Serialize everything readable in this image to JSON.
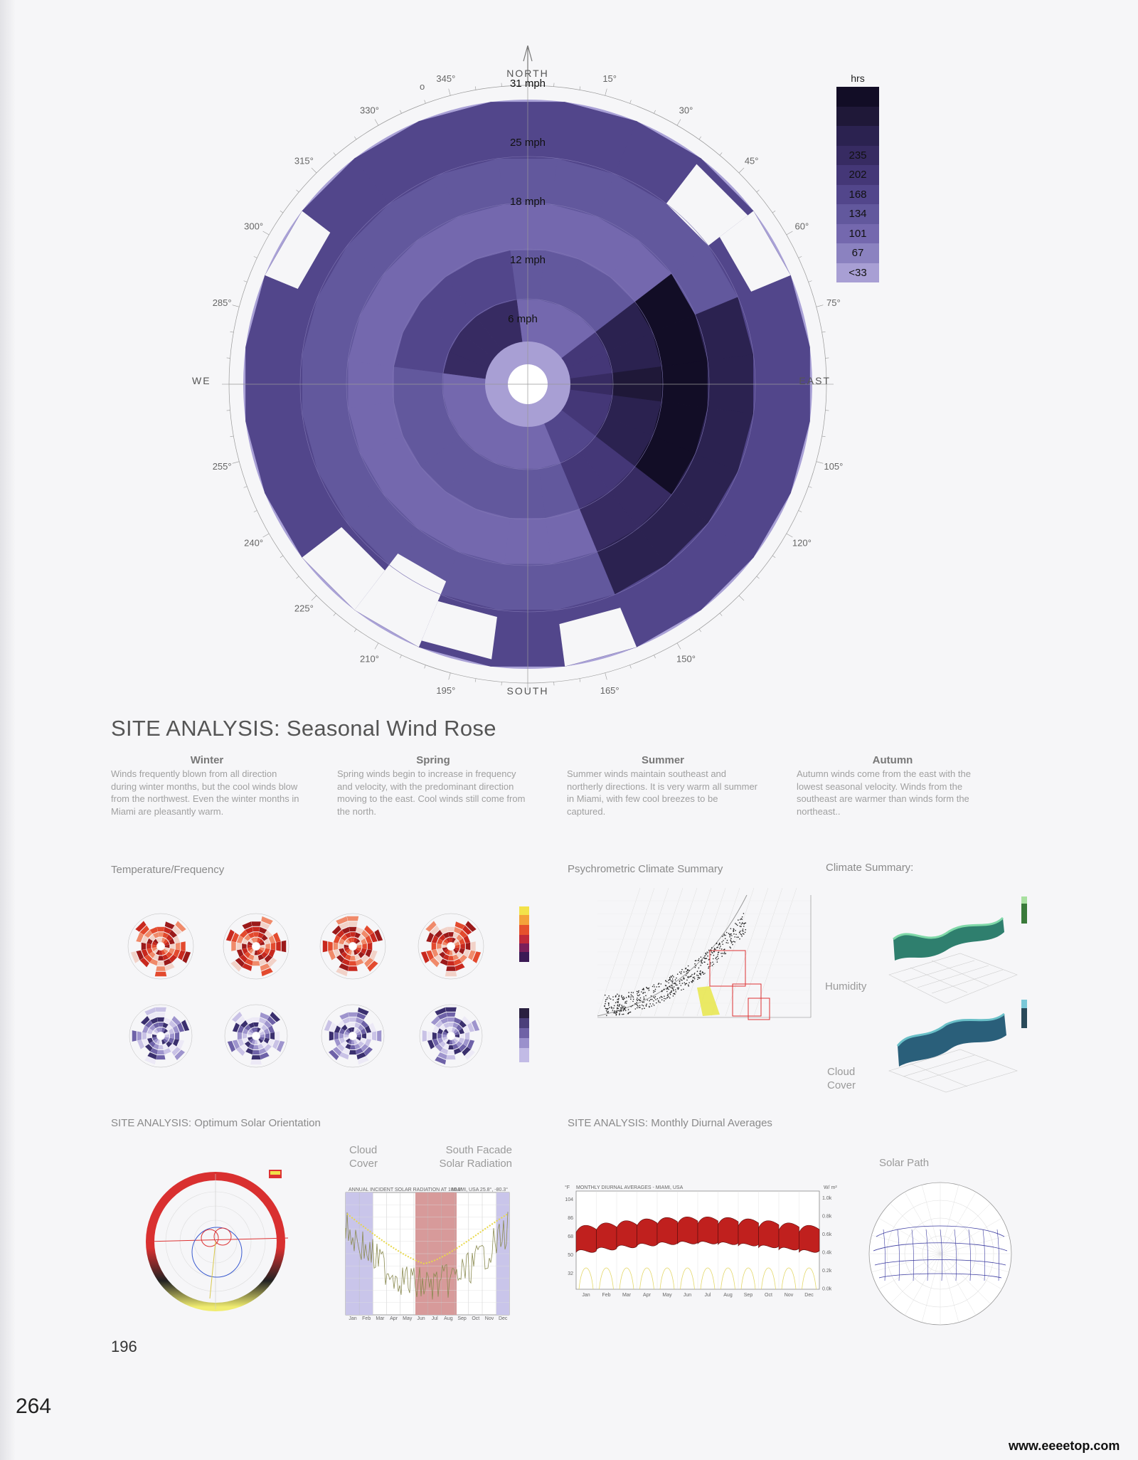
{
  "wind_rose": {
    "north": "NORTH",
    "south": "SOUTH",
    "east": "EAST",
    "west": "WE",
    "north_small_glyph": "o",
    "speed_labels": [
      "31 mph",
      "25 mph",
      "18 mph",
      "12 mph",
      "6 mph"
    ],
    "degrees": [
      "15°",
      "30°",
      "45°",
      "60°",
      "75°",
      "105°",
      "120°",
      "150°",
      "165°",
      "195°",
      "210°",
      "225°",
      "240°",
      "255°",
      "285°",
      "300°",
      "315°",
      "330°",
      "345°"
    ]
  },
  "legend": {
    "title": "hrs",
    "items": [
      {
        "label": "",
        "color": "#120d26"
      },
      {
        "label": "",
        "color": "#1f1838"
      },
      {
        "label": "",
        "color": "#2b2250"
      },
      {
        "label": "235",
        "color": "#372b62"
      },
      {
        "label": "202",
        "color": "#443777"
      },
      {
        "label": "168",
        "color": "#52468b"
      },
      {
        "label": "134",
        "color": "#62589d"
      },
      {
        "label": "101",
        "color": "#7468ae"
      },
      {
        "label": "67",
        "color": "#8b82c0"
      },
      {
        "label": "<33",
        "color": "#a89fd4"
      }
    ]
  },
  "main_title": "SITE ANALYSIS: Seasonal Wind Rose",
  "seasons": [
    {
      "name": "Winter",
      "text": "Winds frequently blown from all direction during winter months, but the cool winds blow from the northwest. Even the winter months in Miami are pleasantly warm."
    },
    {
      "name": "Spring",
      "text": "Spring winds begin to increase in frequency and velocity, with the predominant direction moving to the east. Cool winds still come from the north."
    },
    {
      "name": "Summer",
      "text": "Summer winds maintain southeast and northerly directions. It is very warm all summer in Miami, with few cool breezes to be captured."
    },
    {
      "name": "Autumn",
      "text": "Autumn winds come from the east with the lowest seasonal velocity. Winds from the southeast are warmer than winds form the northeast.."
    }
  ],
  "sections": {
    "temp_freq": "Temperature/Frequency",
    "psychrometric": "Psychrometric Climate Summary",
    "climate_summary": "Climate Summary:",
    "humidity": "Humidity",
    "cloud_cover": "Cloud Cover",
    "solar_orientation": "SITE ANALYSIS: Optimum Solar Orientation",
    "diurnal": "SITE ANALYSIS: Monthly Diurnal Averages",
    "cloud_cover_label": "Cloud Cover",
    "south_facade": "South Facade Solar Radiation",
    "solar_path": "Solar Path"
  },
  "solar_radiation_chart": {
    "header_left": "ANNUAL INCIDENT SOLAR RADIATION AT 180.0°",
    "header_right": "MIAMI, USA 25.8°, -80.3°",
    "months": [
      "Jan",
      "Feb",
      "Mar",
      "Apr",
      "May",
      "Jun",
      "Jul",
      "Aug",
      "Sep",
      "Oct",
      "Nov",
      "Dec"
    ]
  },
  "diurnal_chart": {
    "title": "MONTHLY DIURNAL AVERAGES - MIAMI, USA",
    "left_unit": "°F",
    "right_unit": "W/ m²",
    "left_ticks": [
      "104",
      "86",
      "68",
      "50",
      "32"
    ],
    "right_ticks": [
      "1.0k",
      "0.8k",
      "0.6k",
      "0.4k",
      "0.2k",
      "0.0k"
    ],
    "months": [
      "Jan",
      "Feb",
      "Mar",
      "Apr",
      "May",
      "Jun",
      "Jul",
      "Aug",
      "Sep",
      "Oct",
      "Nov",
      "Dec"
    ]
  },
  "page_number": "196",
  "folio": "264",
  "watermark": "www.eeeetop.com"
}
